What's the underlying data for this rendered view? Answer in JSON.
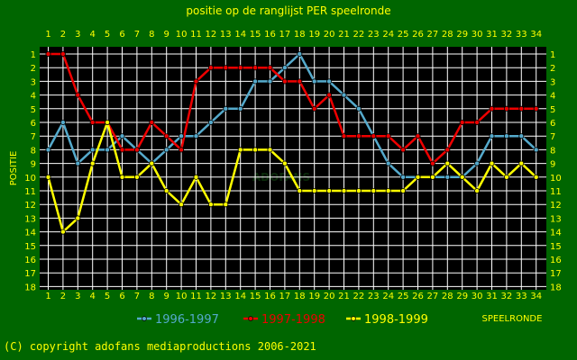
{
  "title": "positie op de ranglijst PER speelronde",
  "copyright": "(C) copyright adofans mediaproductions 2006-2021",
  "watermark": "ADOFANS",
  "colors": {
    "background": "#006600",
    "plot": "#000000",
    "text": "#ffff00",
    "grid": "#ffffff"
  },
  "chart_data": {
    "type": "line",
    "title": "positie op de ranglijst PER speelronde",
    "xlabel": "SPEELRONDE",
    "ylabel": "POSITIE",
    "x": [
      1,
      2,
      3,
      4,
      5,
      6,
      7,
      8,
      9,
      10,
      11,
      12,
      13,
      14,
      15,
      16,
      17,
      18,
      19,
      20,
      21,
      22,
      23,
      24,
      25,
      26,
      27,
      28,
      29,
      30,
      31,
      32,
      33,
      34
    ],
    "x_ticks": [
      "1",
      "2",
      "3",
      "4",
      "5",
      "6",
      "7",
      "8",
      "9",
      "10",
      "11",
      "12",
      "13",
      "14",
      "15",
      "16",
      "17",
      "18",
      "19",
      "20",
      "21",
      "22",
      "23",
      "24",
      "25",
      "26",
      "27",
      "28",
      "29",
      "30",
      "31",
      "32",
      "33",
      "34"
    ],
    "y_ticks": [
      "1",
      "2",
      "3",
      "4",
      "5",
      "6",
      "7",
      "8",
      "9",
      "10",
      "11",
      "12",
      "13",
      "14",
      "15",
      "16",
      "17",
      "18"
    ],
    "xlim": [
      1,
      34
    ],
    "ylim": [
      1,
      18
    ],
    "y_inverted": true,
    "grid": true,
    "legend": "bottom",
    "series": [
      {
        "name": "1996-1997",
        "color": "#55aacc",
        "values": [
          8,
          6,
          9,
          8,
          8,
          7,
          8,
          9,
          8,
          7,
          7,
          6,
          5,
          5,
          3,
          3,
          2,
          1,
          3,
          3,
          4,
          5,
          7,
          9,
          10,
          10,
          10,
          10,
          10,
          9,
          7,
          7,
          7,
          8
        ]
      },
      {
        "name": "1997-1998",
        "color": "#ee0000",
        "values": [
          1,
          1,
          4,
          6,
          6,
          8,
          8,
          6,
          7,
          8,
          3,
          2,
          2,
          2,
          2,
          2,
          3,
          3,
          5,
          4,
          7,
          7,
          7,
          7,
          8,
          7,
          9,
          8,
          6,
          6,
          5,
          5,
          5,
          5
        ]
      },
      {
        "name": "1998-1999",
        "color": "#ffff00",
        "values": [
          10,
          14,
          13,
          9,
          6,
          10,
          10,
          9,
          11,
          12,
          10,
          12,
          12,
          8,
          8,
          8,
          9,
          11,
          11,
          11,
          11,
          11,
          11,
          11,
          11,
          10,
          10,
          9,
          10,
          11,
          9,
          10,
          9,
          10
        ]
      }
    ]
  }
}
